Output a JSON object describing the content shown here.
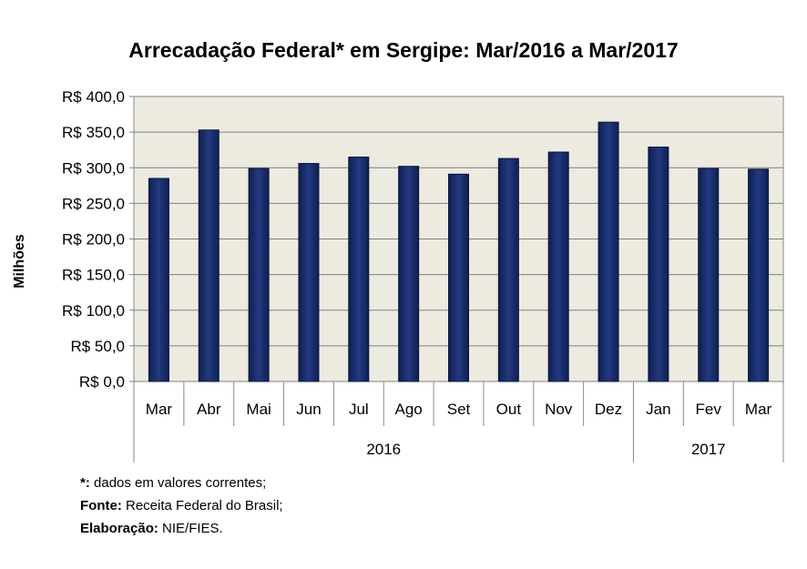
{
  "chart_data": {
    "type": "bar",
    "title": "Arrecadação Federal* em Sergipe: Mar/2016 a Mar/2017",
    "ylabel": "Milhões",
    "xlabel": "",
    "ylim": [
      0,
      400
    ],
    "yticks": [
      "R$ 0,0",
      "R$ 50,0",
      "R$ 100,0",
      "R$ 150,0",
      "R$ 200,0",
      "R$ 250,0",
      "R$ 300,0",
      "R$ 350,0",
      "R$ 400,0"
    ],
    "grid": true,
    "categories": [
      "Mar",
      "Abr",
      "Mai",
      "Jun",
      "Jul",
      "Ago",
      "Set",
      "Out",
      "Nov",
      "Dez",
      "Jan",
      "Fev",
      "Mar"
    ],
    "groups": [
      {
        "label": "2016",
        "count": 10
      },
      {
        "label": "2017",
        "count": 3
      }
    ],
    "values": [
      285,
      353,
      299,
      306,
      315,
      302,
      291,
      313,
      322,
      364,
      329,
      299,
      298
    ],
    "bar_color": "#1a2e6b",
    "plot_bg": "#edebe0"
  },
  "notes": [
    {
      "bold": "*:",
      "text": " dados em valores correntes;"
    },
    {
      "bold": "Fonte:",
      "text": " Receita Federal do Brasil;"
    },
    {
      "bold": "Elaboração:",
      "text": "  NIE/FIES."
    }
  ]
}
